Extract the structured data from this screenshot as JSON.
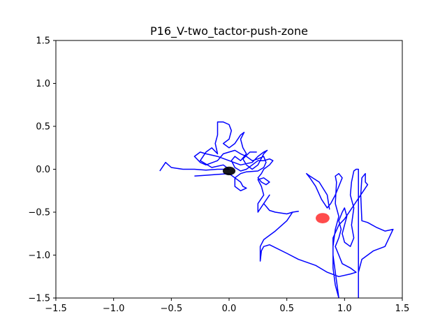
{
  "chart_data": {
    "type": "line",
    "title": "P16_V-two_tactor-push-zone",
    "xlabel": "",
    "ylabel": "",
    "xlim": [
      -1.5,
      1.5
    ],
    "ylim": [
      -1.5,
      1.5
    ],
    "xticks": [
      "−1.5",
      "−1.0",
      "−0.5",
      "0.0",
      "0.5",
      "1.0",
      "1.5"
    ],
    "yticks": [
      "1.5",
      "1.0",
      "0.5",
      "0.0",
      "−0.5",
      "−1.0",
      "−1.5"
    ],
    "xtick_values": [
      -1.5,
      -1.0,
      -0.5,
      0.0,
      0.5,
      1.0,
      1.5
    ],
    "ytick_values": [
      1.5,
      1.0,
      0.5,
      0.0,
      -0.5,
      -1.0,
      -1.5
    ],
    "grid": false,
    "colors": {
      "trajectory": "#0000ff",
      "start_marker": "#000000",
      "target_marker": "#ff0000"
    },
    "series": [
      {
        "points": [
          [
            -0.6,
            -0.02
          ],
          [
            -0.55,
            0.08
          ],
          [
            -0.5,
            0.02
          ],
          [
            -0.4,
            0.0
          ],
          [
            -0.3,
            0.0
          ],
          [
            -0.2,
            -0.01
          ],
          [
            -0.1,
            0.0
          ],
          [
            0.0,
            0.0
          ],
          [
            -0.05,
            0.05
          ],
          [
            -0.15,
            0.02
          ],
          [
            -0.25,
            0.1
          ],
          [
            -0.2,
            0.2
          ],
          [
            -0.15,
            0.25
          ],
          [
            -0.1,
            0.18
          ],
          [
            -0.12,
            0.3
          ],
          [
            -0.1,
            0.4
          ],
          [
            -0.1,
            0.55
          ],
          [
            -0.05,
            0.55
          ],
          [
            0.0,
            0.52
          ],
          [
            0.02,
            0.45
          ],
          [
            0.0,
            0.35
          ],
          [
            -0.05,
            0.3
          ],
          [
            0.0,
            0.25
          ],
          [
            0.05,
            0.3
          ],
          [
            0.1,
            0.4
          ],
          [
            0.13,
            0.43
          ],
          [
            0.1,
            0.35
          ],
          [
            0.12,
            0.25
          ],
          [
            0.15,
            0.18
          ],
          [
            0.1,
            0.1
          ],
          [
            0.05,
            0.15
          ],
          [
            0.02,
            0.1
          ],
          [
            0.05,
            0.02
          ],
          [
            0.1,
            -0.02
          ],
          [
            0.15,
            0.0
          ],
          [
            0.2,
            0.05
          ],
          [
            0.25,
            0.1
          ],
          [
            0.3,
            0.1
          ],
          [
            0.35,
            0.12
          ],
          [
            0.38,
            0.1
          ],
          [
            0.35,
            0.05
          ],
          [
            0.3,
            0.0
          ],
          [
            0.28,
            -0.05
          ],
          [
            0.25,
            -0.1
          ],
          [
            0.28,
            -0.15
          ],
          [
            0.32,
            -0.18
          ],
          [
            0.35,
            -0.15
          ],
          [
            0.3,
            -0.1
          ],
          [
            0.25,
            -0.12
          ],
          [
            0.28,
            -0.2
          ],
          [
            0.3,
            -0.3
          ],
          [
            0.25,
            -0.4
          ],
          [
            0.25,
            -0.5
          ],
          [
            0.3,
            -0.4
          ],
          [
            0.35,
            -0.3
          ],
          [
            0.3,
            -0.4
          ],
          [
            0.35,
            -0.48
          ],
          [
            0.4,
            -0.5
          ],
          [
            0.5,
            -0.52
          ],
          [
            0.55,
            -0.5
          ],
          [
            0.6,
            -0.49
          ],
          [
            0.55,
            -0.5
          ],
          [
            0.5,
            -0.6
          ],
          [
            0.4,
            -0.72
          ],
          [
            0.3,
            -0.82
          ],
          [
            0.27,
            -0.9
          ],
          [
            0.27,
            -1.07
          ],
          [
            0.28,
            -0.95
          ],
          [
            0.3,
            -0.9
          ],
          [
            0.35,
            -0.88
          ],
          [
            0.5,
            -0.98
          ],
          [
            0.6,
            -1.05
          ],
          [
            0.75,
            -1.12
          ],
          [
            0.85,
            -1.2
          ],
          [
            0.95,
            -1.25
          ],
          [
            1.05,
            -1.22
          ],
          [
            1.1,
            -1.2
          ],
          [
            1.05,
            -1.15
          ],
          [
            0.98,
            -1.1
          ],
          [
            0.95,
            -1.0
          ],
          [
            0.92,
            -0.9
          ],
          [
            0.95,
            -0.8
          ],
          [
            0.97,
            -0.7
          ],
          [
            0.95,
            -0.6
          ],
          [
            0.98,
            -0.5
          ],
          [
            1.0,
            -0.45
          ],
          [
            1.02,
            -0.55
          ],
          [
            1.0,
            -0.65
          ],
          [
            0.98,
            -0.75
          ],
          [
            1.0,
            -0.85
          ],
          [
            1.05,
            -0.9
          ],
          [
            1.08,
            -0.8
          ],
          [
            1.06,
            -0.65
          ],
          [
            1.08,
            -0.45
          ],
          [
            1.05,
            -0.3
          ],
          [
            1.06,
            -0.15
          ],
          [
            1.08,
            -0.02
          ],
          [
            1.1,
            0.0
          ],
          [
            1.12,
            0.0
          ],
          [
            1.12,
            -0.2
          ],
          [
            1.12,
            -0.5
          ],
          [
            1.12,
            -0.8
          ],
          [
            1.12,
            -1.1
          ],
          [
            1.12,
            -1.5
          ],
          [
            1.12,
            -1.2
          ],
          [
            1.15,
            -1.05
          ],
          [
            1.2,
            -1.0
          ],
          [
            1.25,
            -0.95
          ],
          [
            1.35,
            -0.9
          ],
          [
            1.42,
            -0.7
          ],
          [
            1.35,
            -0.72
          ],
          [
            1.28,
            -0.68
          ],
          [
            1.2,
            -0.62
          ],
          [
            1.15,
            -0.6
          ],
          [
            1.14,
            -0.3
          ],
          [
            1.15,
            -0.1
          ],
          [
            1.18,
            -0.05
          ],
          [
            1.18,
            -0.15
          ],
          [
            1.2,
            -0.18
          ],
          [
            1.0,
            -0.58
          ],
          [
            0.95,
            -0.65
          ],
          [
            0.9,
            -0.8
          ],
          [
            0.9,
            -1.0
          ],
          [
            0.92,
            -1.2
          ],
          [
            0.93,
            -1.3
          ],
          [
            0.95,
            -1.5
          ],
          [
            0.92,
            -1.35
          ],
          [
            0.9,
            -1.15
          ],
          [
            0.9,
            -0.9
          ],
          [
            0.92,
            -0.7
          ],
          [
            0.95,
            -0.55
          ],
          [
            0.92,
            -0.4
          ],
          [
            0.93,
            -0.15
          ],
          [
            0.92,
            -0.08
          ],
          [
            0.95,
            -0.05
          ],
          [
            0.98,
            -0.1
          ],
          [
            0.95,
            -0.2
          ],
          [
            0.92,
            -0.3
          ],
          [
            0.88,
            -0.4
          ],
          [
            0.85,
            -0.45
          ],
          [
            0.8,
            -0.35
          ],
          [
            0.75,
            -0.2
          ],
          [
            0.7,
            -0.1
          ],
          [
            0.67,
            -0.05
          ],
          [
            0.7,
            -0.08
          ],
          [
            0.78,
            -0.15
          ],
          [
            0.85,
            -0.3
          ],
          [
            0.87,
            -0.47
          ]
        ]
      },
      {
        "points": [
          [
            -0.3,
            -0.08
          ],
          [
            -0.2,
            -0.07
          ],
          [
            -0.1,
            -0.06
          ],
          [
            0.0,
            -0.05
          ],
          [
            0.05,
            -0.1
          ],
          [
            0.1,
            -0.15
          ],
          [
            0.12,
            -0.2
          ],
          [
            0.15,
            -0.22
          ],
          [
            0.1,
            -0.25
          ],
          [
            0.05,
            -0.2
          ],
          [
            0.05,
            -0.1
          ],
          [
            0.1,
            -0.05
          ],
          [
            0.15,
            -0.03
          ],
          [
            0.25,
            -0.02
          ],
          [
            0.3,
            0.02
          ],
          [
            0.32,
            0.08
          ],
          [
            0.3,
            0.15
          ],
          [
            0.25,
            0.12
          ],
          [
            0.2,
            0.1
          ],
          [
            0.15,
            0.15
          ],
          [
            0.1,
            0.18
          ],
          [
            0.05,
            0.22
          ],
          [
            0.0,
            0.2
          ],
          [
            -0.05,
            0.18
          ],
          [
            -0.1,
            0.1
          ],
          [
            -0.2,
            0.05
          ],
          [
            -0.25,
            0.08
          ],
          [
            -0.3,
            0.15
          ],
          [
            -0.25,
            0.2
          ],
          [
            -0.2,
            0.18
          ],
          [
            -0.1,
            0.15
          ],
          [
            0.0,
            0.1
          ],
          [
            0.1,
            0.05
          ],
          [
            0.2,
            0.08
          ],
          [
            0.25,
            0.15
          ],
          [
            0.3,
            0.2
          ],
          [
            0.33,
            0.22
          ],
          [
            0.3,
            0.18
          ],
          [
            0.25,
            0.05
          ],
          [
            0.2,
            0.0
          ],
          [
            0.15,
            0.05
          ],
          [
            0.12,
            0.12
          ],
          [
            0.18,
            0.2
          ],
          [
            0.24,
            0.2
          ]
        ]
      }
    ],
    "markers": [
      {
        "x": 0.0,
        "y": -0.02,
        "color": "#000000",
        "rx": 0.055,
        "ry": 0.05
      },
      {
        "x": 0.81,
        "y": -0.57,
        "color": "#ff0000",
        "rx": 0.06,
        "ry": 0.06
      }
    ]
  }
}
